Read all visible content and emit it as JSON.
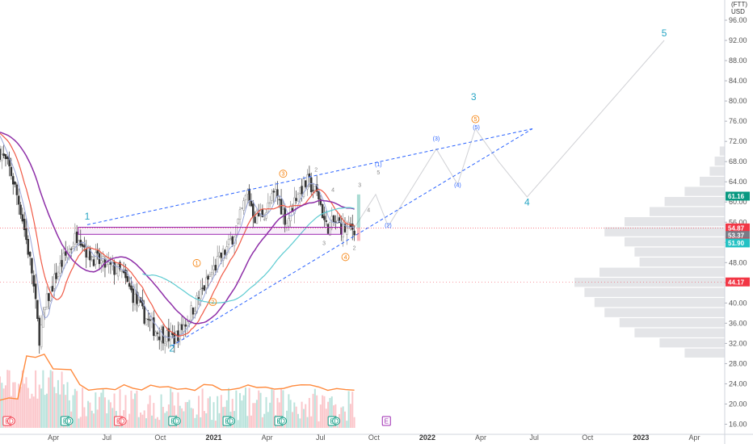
{
  "chart_data": {
    "type": "candlestick",
    "currency_label": [
      "(FTT)",
      "USD"
    ],
    "y_ticks": [
      16,
      20,
      24,
      28,
      32,
      36,
      40,
      44,
      48,
      52,
      56,
      60,
      64,
      68,
      72,
      76,
      80,
      84,
      88,
      92,
      96
    ],
    "ylim": [
      14,
      100
    ],
    "x_axis": {
      "ticks": [
        {
          "label": "Apr",
          "t": 3,
          "bold": false
        },
        {
          "label": "Jul",
          "t": 6,
          "bold": false
        },
        {
          "label": "Oct",
          "t": 9,
          "bold": false
        },
        {
          "label": "2021",
          "t": 12,
          "bold": true
        },
        {
          "label": "Apr",
          "t": 15,
          "bold": false
        },
        {
          "label": "Jul",
          "t": 18,
          "bold": false
        },
        {
          "label": "Oct",
          "t": 21,
          "bold": false
        },
        {
          "label": "2022",
          "t": 24,
          "bold": true
        },
        {
          "label": "Apr",
          "t": 27,
          "bold": false
        },
        {
          "label": "Jul",
          "t": 30,
          "bold": false
        },
        {
          "label": "Oct",
          "t": 33,
          "bold": false
        },
        {
          "label": "2023",
          "t": 36,
          "bold": true
        },
        {
          "label": "Apr",
          "t": 39,
          "bold": false
        }
      ],
      "xlim": [
        0,
        40.7
      ]
    },
    "price_path": [
      [
        0,
        70
      ],
      [
        0.6,
        66
      ],
      [
        1.2,
        58
      ],
      [
        1.8,
        46
      ],
      [
        2.2,
        33
      ],
      [
        2.6,
        40
      ],
      [
        3.2,
        46
      ],
      [
        3.8,
        50
      ],
      [
        4.4,
        54
      ],
      [
        4.9,
        50
      ],
      [
        5.6,
        48
      ],
      [
        6.2,
        47
      ],
      [
        6.8,
        46
      ],
      [
        7.4,
        42
      ],
      [
        8.0,
        38
      ],
      [
        8.6,
        35
      ],
      [
        9.2,
        33.5
      ],
      [
        9.8,
        33
      ],
      [
        10.4,
        36
      ],
      [
        11.0,
        40
      ],
      [
        11.6,
        44
      ],
      [
        12.2,
        48
      ],
      [
        12.8,
        51
      ],
      [
        13.4,
        56
      ],
      [
        13.9,
        62
      ],
      [
        14.3,
        57
      ],
      [
        14.9,
        58
      ],
      [
        15.5,
        62
      ],
      [
        16.1,
        56
      ],
      [
        16.7,
        62
      ],
      [
        17.3,
        64
      ],
      [
        17.9,
        61
      ],
      [
        18.3,
        55
      ],
      [
        18.8,
        56
      ],
      [
        19.4,
        54.5
      ],
      [
        19.9,
        54.9
      ]
    ],
    "volume_profile_right": [
      [
        70,
        0.1
      ],
      [
        68,
        0.2
      ],
      [
        66,
        0.3
      ],
      [
        64,
        0.5
      ],
      [
        62,
        0.8
      ],
      [
        60,
        1.2
      ],
      [
        58,
        1.5
      ],
      [
        56,
        2.0
      ],
      [
        54,
        2.4
      ],
      [
        52,
        2.0
      ],
      [
        50,
        1.8
      ],
      [
        48,
        1.7
      ],
      [
        46,
        2.5
      ],
      [
        44,
        3.0
      ],
      [
        42,
        2.8
      ],
      [
        40,
        2.6
      ],
      [
        38,
        2.4
      ],
      [
        36,
        2.1
      ],
      [
        34,
        1.8
      ],
      [
        32,
        1.3
      ],
      [
        30,
        0.8
      ]
    ],
    "price_labels": [
      {
        "value": "61.16",
        "y": 61.16,
        "color": "#089981"
      },
      {
        "value": "54.87",
        "y": 54.87,
        "color": "#f23645"
      },
      {
        "value": "53.37",
        "y": 53.37,
        "color": "#787b86"
      },
      {
        "value": "52.05",
        "y": 52.05,
        "color": "#f23645"
      },
      {
        "value": "51.90",
        "y": 51.9,
        "color": "#22c1c3"
      },
      {
        "value": "44.17",
        "y": 44.17,
        "color": "#f23645"
      }
    ],
    "wave_labels_main": [
      {
        "text": "1",
        "t": 4.9,
        "y": 56.5
      },
      {
        "text": "2",
        "t": 9.65,
        "y": 30.4
      },
      {
        "text": "3",
        "t": 26.6,
        "y": 80.2
      },
      {
        "text": "4",
        "t": 29.6,
        "y": 59.3
      },
      {
        "text": "5",
        "t": 37.3,
        "y": 92.8
      }
    ],
    "wave_labels_small": [
      {
        "text": "(1)",
        "t": 21.25,
        "y": 67.1
      },
      {
        "text": "(2)",
        "t": 21.8,
        "y": 55.0
      },
      {
        "text": "(3)",
        "t": 24.5,
        "y": 72.2
      },
      {
        "text": "(4)",
        "t": 25.7,
        "y": 63.0
      },
      {
        "text": "(5)",
        "t": 26.75,
        "y": 74.4
      }
    ],
    "wave_labels_grey": [
      {
        "text": "2",
        "t": 17.75,
        "y": 66.0
      },
      {
        "text": "4",
        "t": 18.7,
        "y": 62.0
      },
      {
        "text": "3",
        "t": 20.2,
        "y": 63.0
      },
      {
        "text": "4",
        "t": 20.7,
        "y": 58.0
      },
      {
        "text": "5",
        "t": 21.25,
        "y": 65.5
      },
      {
        "text": "3",
        "t": 18.2,
        "y": 51.5
      },
      {
        "text": "2",
        "t": 19.9,
        "y": 50.5
      }
    ],
    "wave_labels_orange": [
      {
        "text": "1",
        "t": 11.05,
        "y": 47.5
      },
      {
        "text": "2",
        "t": 11.95,
        "y": 39.8
      },
      {
        "text": "3",
        "t": 15.9,
        "y": 65.2
      },
      {
        "text": "4",
        "t": 19.4,
        "y": 48.7
      },
      {
        "text": "5",
        "t": 26.7,
        "y": 76.0
      }
    ],
    "events": [
      {
        "t": 0.45,
        "kind": "dividend"
      },
      {
        "t": 3.7,
        "kind": "earnings"
      },
      {
        "t": 6.7,
        "kind": "dividend"
      },
      {
        "t": 9.75,
        "kind": "earnings"
      },
      {
        "t": 12.8,
        "kind": "earnings"
      },
      {
        "t": 15.7,
        "kind": "earnings"
      },
      {
        "t": 18.7,
        "kind": "earnings"
      },
      {
        "t": 21.7,
        "kind": "future"
      }
    ]
  }
}
